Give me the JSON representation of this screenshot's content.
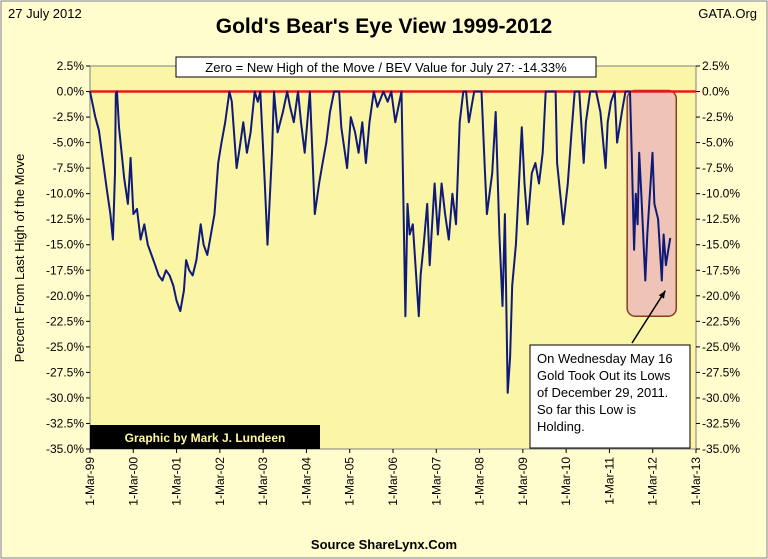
{
  "header": {
    "date": "27 July 2012",
    "source_tag": "GATA.Org"
  },
  "credit": "Graphic by Mark J. Lundeen",
  "footer_source": "Source ShareLynx.Com",
  "colors": {
    "frame_bg": "#fffccd",
    "plot_bg": "#fbf5a6",
    "series": "#0f1a78",
    "zero_line": "#e8191d",
    "highlight_fill": "#efc4b6",
    "highlight_stroke": "#8a3a2a",
    "credit_bg": "#000000",
    "credit_text": "#fff8a0"
  },
  "chart_data": {
    "type": "line",
    "title": "Gold's Bear's Eye View 1999-2012",
    "xlabel": "",
    "ylabel": "Percent From Last High of the Move",
    "ylim": [
      -35,
      2.5
    ],
    "y_ticks": [
      "2.5%",
      "0.0%",
      "-2.5%",
      "-5.0%",
      "-7.5%",
      "-10.0%",
      "-12.5%",
      "-15.0%",
      "-17.5%",
      "-20.0%",
      "-22.5%",
      "-25.0%",
      "-27.5%",
      "-30.0%",
      "-32.5%",
      "-35.0%"
    ],
    "x_ticks": [
      "1-Mar-99",
      "1-Mar-00",
      "1-Mar-01",
      "1-Mar-02",
      "1-Mar-03",
      "1-Mar-04",
      "1-Mar-05",
      "1-Mar-06",
      "1-Mar-07",
      "1-Mar-08",
      "1-Mar-09",
      "1-Mar-10",
      "1-Mar-11",
      "1-Mar-12",
      "1-Mar-13"
    ],
    "xlim": [
      "1999-03-01",
      "2013-03-01"
    ],
    "grid": false,
    "legend": "none",
    "reference_line": {
      "y": 0,
      "color": "#e8191d"
    },
    "info_box": "Zero = New High of the Move / BEV Value for July 27: -14.33%",
    "annotation": "On Wednesday May 16 Gold Took Out its Lows of December 29, 2011. So far this Low is Holding.",
    "highlight_period": [
      "2011-09-01",
      "2012-07-27"
    ],
    "series": [
      {
        "values": [
          [
            "1999-03-01",
            0.0
          ],
          [
            "1999-04-15",
            -2.5
          ],
          [
            "1999-05-15",
            -3.8
          ],
          [
            "1999-06-15",
            -6.5
          ],
          [
            "1999-07-20",
            -9.5
          ],
          [
            "1999-08-20",
            -12.0
          ],
          [
            "1999-09-10",
            -14.5
          ],
          [
            "1999-09-28",
            -8.0
          ],
          [
            "1999-10-05",
            -0.2
          ],
          [
            "1999-10-15",
            0.0
          ],
          [
            "1999-11-01",
            -3.5
          ],
          [
            "1999-12-15",
            -8.5
          ],
          [
            "2000-01-15",
            -11.0
          ],
          [
            "2000-02-07",
            -6.5
          ],
          [
            "2000-02-15",
            -8.5
          ],
          [
            "2000-03-01",
            -12.0
          ],
          [
            "2000-04-01",
            -11.5
          ],
          [
            "2000-05-01",
            -14.5
          ],
          [
            "2000-06-01",
            -13.0
          ],
          [
            "2000-07-01",
            -15.0
          ],
          [
            "2000-08-01",
            -16.0
          ],
          [
            "2000-09-01",
            -17.0
          ],
          [
            "2000-10-01",
            -18.0
          ],
          [
            "2000-11-01",
            -18.5
          ],
          [
            "2000-12-01",
            -17.5
          ],
          [
            "2001-01-01",
            -18.0
          ],
          [
            "2001-02-01",
            -19.0
          ],
          [
            "2001-03-01",
            -20.5
          ],
          [
            "2001-04-01",
            -21.5
          ],
          [
            "2001-05-01",
            -19.5
          ],
          [
            "2001-05-20",
            -16.5
          ],
          [
            "2001-06-15",
            -17.5
          ],
          [
            "2001-07-15",
            -18.0
          ],
          [
            "2001-08-15",
            -16.5
          ],
          [
            "2001-09-20",
            -13.0
          ],
          [
            "2001-10-15",
            -15.0
          ],
          [
            "2001-11-15",
            -16.0
          ],
          [
            "2001-12-15",
            -14.0
          ],
          [
            "2002-01-15",
            -12.0
          ],
          [
            "2002-02-15",
            -7.0
          ],
          [
            "2002-03-15",
            -5.0
          ],
          [
            "2002-04-15",
            -3.0
          ],
          [
            "2002-05-20",
            0.0
          ],
          [
            "2002-06-10",
            -1.0
          ],
          [
            "2002-07-20",
            -7.5
          ],
          [
            "2002-08-15",
            -5.5
          ],
          [
            "2002-09-15",
            -3.0
          ],
          [
            "2002-10-15",
            -6.0
          ],
          [
            "2002-11-15",
            -4.0
          ],
          [
            "2002-12-20",
            0.0
          ],
          [
            "2003-01-15",
            -1.0
          ],
          [
            "2003-02-05",
            0.0
          ],
          [
            "2003-03-15",
            -9.0
          ],
          [
            "2003-04-07",
            -15.0
          ],
          [
            "2003-05-15",
            -6.0
          ],
          [
            "2003-06-01",
            0.0
          ],
          [
            "2003-07-01",
            -4.0
          ],
          [
            "2003-08-15",
            -2.0
          ],
          [
            "2003-09-20",
            0.0
          ],
          [
            "2003-10-15",
            -1.5
          ],
          [
            "2003-11-15",
            -3.0
          ],
          [
            "2003-12-20",
            0.0
          ],
          [
            "2004-01-15",
            -3.0
          ],
          [
            "2004-02-15",
            -6.0
          ],
          [
            "2004-03-30",
            0.0
          ],
          [
            "2004-05-10",
            -12.0
          ],
          [
            "2004-06-15",
            -9.0
          ],
          [
            "2004-07-15",
            -7.0
          ],
          [
            "2004-08-15",
            -5.0
          ],
          [
            "2004-09-15",
            -2.0
          ],
          [
            "2004-10-20",
            0.0
          ],
          [
            "2004-12-01",
            0.0
          ],
          [
            "2004-12-20",
            -3.5
          ],
          [
            "2005-02-07",
            -7.5
          ],
          [
            "2005-03-10",
            -2.5
          ],
          [
            "2005-04-15",
            -4.0
          ],
          [
            "2005-05-15",
            -6.0
          ],
          [
            "2005-06-15",
            -3.0
          ],
          [
            "2005-07-15",
            -7.0
          ],
          [
            "2005-08-15",
            -3.0
          ],
          [
            "2005-09-20",
            0.0
          ],
          [
            "2005-10-20",
            -1.5
          ],
          [
            "2005-12-10",
            0.0
          ],
          [
            "2006-01-15",
            -1.0
          ],
          [
            "2006-02-15",
            0.0
          ],
          [
            "2006-03-20",
            -3.0
          ],
          [
            "2006-05-12",
            0.0
          ],
          [
            "2006-06-14",
            -22.0
          ],
          [
            "2006-07-01",
            -11.0
          ],
          [
            "2006-07-20",
            -14.0
          ],
          [
            "2006-08-15",
            -13.0
          ],
          [
            "2006-10-05",
            -22.0
          ],
          [
            "2006-10-20",
            -18.0
          ],
          [
            "2006-11-15",
            -15.0
          ],
          [
            "2006-12-15",
            -11.0
          ],
          [
            "2007-01-05",
            -17.0
          ],
          [
            "2007-02-15",
            -9.0
          ],
          [
            "2007-03-15",
            -14.0
          ],
          [
            "2007-04-15",
            -9.0
          ],
          [
            "2007-05-15",
            -12.0
          ],
          [
            "2007-06-15",
            -14.5
          ],
          [
            "2007-07-15",
            -10.0
          ],
          [
            "2007-08-15",
            -13.0
          ],
          [
            "2007-09-15",
            -3.0
          ],
          [
            "2007-10-15",
            0.0
          ],
          [
            "2007-11-08",
            0.0
          ],
          [
            "2007-12-01",
            -3.0
          ],
          [
            "2008-01-15",
            0.0
          ],
          [
            "2008-03-17",
            0.0
          ],
          [
            "2008-04-15",
            -8.0
          ],
          [
            "2008-05-01",
            -12.0
          ],
          [
            "2008-06-15",
            -8.0
          ],
          [
            "2008-07-15",
            -2.0
          ],
          [
            "2008-08-15",
            -14.0
          ],
          [
            "2008-09-10",
            -21.0
          ],
          [
            "2008-09-30",
            -12.0
          ],
          [
            "2008-10-24",
            -29.5
          ],
          [
            "2008-11-13",
            -26.0
          ],
          [
            "2008-12-01",
            -19.0
          ],
          [
            "2009-01-01",
            -15.0
          ],
          [
            "2009-02-20",
            -3.5
          ],
          [
            "2009-03-15",
            -9.0
          ],
          [
            "2009-04-10",
            -13.0
          ],
          [
            "2009-05-15",
            -8.0
          ],
          [
            "2009-06-15",
            -7.0
          ],
          [
            "2009-07-15",
            -9.0
          ],
          [
            "2009-08-15",
            -6.0
          ],
          [
            "2009-09-10",
            0.0
          ],
          [
            "2009-12-02",
            0.0
          ],
          [
            "2009-12-15",
            -7.0
          ],
          [
            "2010-02-05",
            -13.0
          ],
          [
            "2010-03-15",
            -9.0
          ],
          [
            "2010-04-15",
            -4.0
          ],
          [
            "2010-05-12",
            0.0
          ],
          [
            "2010-06-20",
            0.0
          ],
          [
            "2010-07-27",
            -7.0
          ],
          [
            "2010-08-15",
            -3.0
          ],
          [
            "2010-09-20",
            0.0
          ],
          [
            "2010-11-09",
            0.0
          ],
          [
            "2010-12-15",
            -2.0
          ],
          [
            "2011-01-28",
            -7.5
          ],
          [
            "2011-02-15",
            -3.0
          ],
          [
            "2011-03-15",
            -1.0
          ],
          [
            "2011-04-15",
            0.0
          ],
          [
            "2011-05-05",
            -5.0
          ],
          [
            "2011-06-15",
            -2.0
          ],
          [
            "2011-07-15",
            0.0
          ],
          [
            "2011-08-22",
            0.0
          ],
          [
            "2011-09-05",
            -6.0
          ],
          [
            "2011-09-26",
            -15.5
          ],
          [
            "2011-10-10",
            -10.0
          ],
          [
            "2011-10-25",
            -13.0
          ],
          [
            "2011-11-08",
            -6.0
          ],
          [
            "2011-11-25",
            -10.0
          ],
          [
            "2011-12-29",
            -18.5
          ],
          [
            "2012-01-15",
            -14.0
          ],
          [
            "2012-02-28",
            -6.0
          ],
          [
            "2012-03-15",
            -11.0
          ],
          [
            "2012-04-15",
            -12.5
          ],
          [
            "2012-05-16",
            -18.5
          ],
          [
            "2012-06-01",
            -14.0
          ],
          [
            "2012-06-20",
            -17.0
          ],
          [
            "2012-07-10",
            -15.5
          ],
          [
            "2012-07-27",
            -14.33
          ]
        ]
      }
    ]
  }
}
